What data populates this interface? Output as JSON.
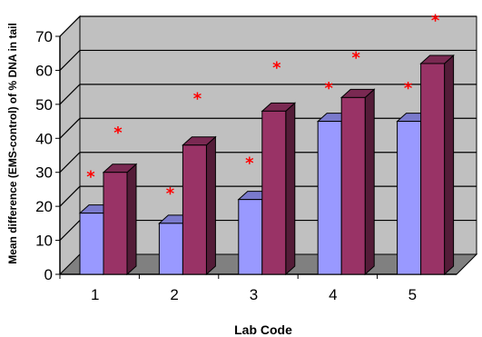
{
  "colors": {
    "series_a": "#9999ff",
    "series_b": "#993366",
    "wall": "#c0c0c0",
    "floor": "#808080",
    "star": "#ff0000"
  },
  "chart_data": {
    "type": "bar",
    "style": "3d-clustered",
    "categories": [
      "1",
      "2",
      "3",
      "4",
      "5"
    ],
    "series": [
      {
        "values": [
          18,
          15,
          22,
          45,
          45
        ],
        "color": "#9999ff"
      },
      {
        "values": [
          30,
          38,
          48,
          52,
          62
        ],
        "color": "#993366"
      }
    ],
    "annotations": {
      "symbol": "*",
      "series_a_y": [
        29,
        24,
        33,
        55,
        55
      ],
      "series_b_y": [
        42,
        52,
        61,
        64,
        75
      ]
    },
    "xlabel": "Lab Code",
    "ylabel": "Mean difference (EMS-control) of % DNA in tail",
    "ylim": [
      0,
      70
    ],
    "yticks": [
      "0",
      "10",
      "20",
      "30",
      "40",
      "50",
      "60",
      "70"
    ],
    "grid": true,
    "legend": "none"
  }
}
